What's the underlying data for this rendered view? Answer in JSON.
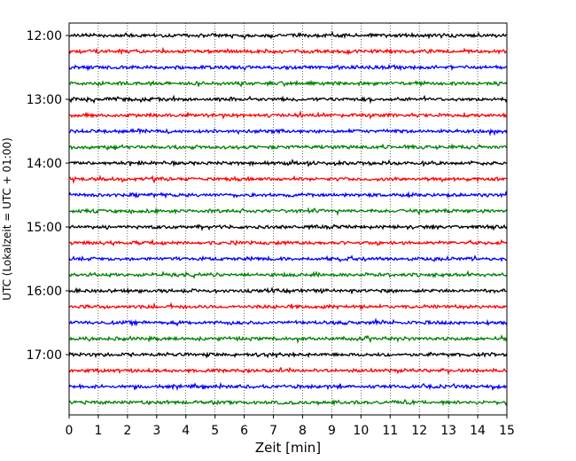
{
  "chart_data": {
    "type": "line",
    "subtype": "helicorder",
    "xlabel": "Zeit  [min]",
    "ylabel": "UTC (Lokalzeit = UTC + 01:00)",
    "xlim": [
      0,
      15
    ],
    "x_ticks": [
      "0",
      "1",
      "2",
      "3",
      "4",
      "5",
      "6",
      "7",
      "8",
      "9",
      "10",
      "11",
      "12",
      "13",
      "14",
      "15"
    ],
    "y_tick_labels": [
      "12:00",
      "13:00",
      "14:00",
      "15:00",
      "16:00",
      "17:00"
    ],
    "rows_per_hour": 4,
    "minutes_per_row": 15,
    "trace_colors": [
      "#000000",
      "#ff0000",
      "#0000ff",
      "#008000"
    ],
    "traces": [
      {
        "start": "12:00",
        "color": "#000000"
      },
      {
        "start": "12:15",
        "color": "#ff0000"
      },
      {
        "start": "12:30",
        "color": "#0000ff"
      },
      {
        "start": "12:45",
        "color": "#008000"
      },
      {
        "start": "13:00",
        "color": "#000000"
      },
      {
        "start": "13:15",
        "color": "#ff0000"
      },
      {
        "start": "13:30",
        "color": "#0000ff"
      },
      {
        "start": "13:45",
        "color": "#008000"
      },
      {
        "start": "14:00",
        "color": "#000000"
      },
      {
        "start": "14:15",
        "color": "#ff0000"
      },
      {
        "start": "14:30",
        "color": "#0000ff"
      },
      {
        "start": "14:45",
        "color": "#008000"
      },
      {
        "start": "15:00",
        "color": "#000000"
      },
      {
        "start": "15:15",
        "color": "#ff0000"
      },
      {
        "start": "15:30",
        "color": "#0000ff"
      },
      {
        "start": "15:45",
        "color": "#008000"
      },
      {
        "start": "16:00",
        "color": "#000000"
      },
      {
        "start": "16:15",
        "color": "#ff0000"
      },
      {
        "start": "16:30",
        "color": "#0000ff"
      },
      {
        "start": "16:45",
        "color": "#008000"
      },
      {
        "start": "17:00",
        "color": "#000000"
      },
      {
        "start": "17:15",
        "color": "#ff0000"
      },
      {
        "start": "17:30",
        "color": "#0000ff"
      },
      {
        "start": "17:45",
        "color": "#008000"
      }
    ],
    "grid": "vertical dotted lines at each minute"
  }
}
